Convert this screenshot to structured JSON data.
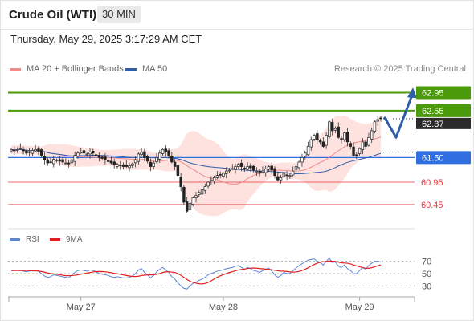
{
  "header": {
    "instrument": "Crude Oil (WTI)",
    "timeframe": "30 MIN"
  },
  "timestamp": "Thursday, May 29, 2025 3:17:29 AM CET",
  "credit": "Research © 2025 Trading Central",
  "colors": {
    "resistance": "#4a9a0c",
    "pivot": "#2f6fe0",
    "support": "#e8363c",
    "current": "#2b2b2b",
    "ma50": "#2f5ea8",
    "ma20": "#f08c8c",
    "band": "#fde2df",
    "arrow": "#2f5ea8",
    "rsi": "#5b86d6",
    "rsi_ma": "#e02020"
  },
  "chart_data": {
    "type": "candlestick",
    "legend": [
      "MA 20 + Bollinger Bands",
      "MA 50"
    ],
    "x_ticks": [
      "May 27",
      "May 28",
      "May 29"
    ],
    "current_price": "62.37",
    "levels": [
      {
        "role": "resistance",
        "value": "62.95"
      },
      {
        "role": "resistance",
        "value": "62.55"
      },
      {
        "role": "pivot",
        "value": "61.50"
      },
      {
        "role": "support",
        "value": "60.95"
      },
      {
        "role": "support",
        "value": "60.45"
      }
    ],
    "ylim": [
      60.0,
      63.3
    ],
    "close": [
      61.68,
      61.66,
      61.68,
      61.7,
      61.65,
      61.6,
      61.63,
      61.66,
      61.68,
      61.64,
      61.55,
      61.45,
      61.38,
      61.4,
      61.46,
      61.44,
      61.42,
      61.4,
      61.38,
      61.36,
      61.45,
      61.55,
      61.6,
      61.62,
      61.6,
      61.58,
      61.62,
      61.6,
      61.56,
      61.5,
      61.48,
      61.45,
      61.42,
      61.38,
      61.34,
      61.35,
      61.33,
      61.3,
      61.3,
      61.32,
      61.36,
      61.45,
      61.58,
      61.62,
      61.5,
      61.42,
      61.3,
      61.38,
      61.5,
      61.6,
      61.68,
      61.62,
      61.55,
      61.4,
      61.3,
      61.1,
      60.85,
      60.5,
      60.3,
      60.48,
      60.6,
      60.65,
      60.72,
      60.78,
      60.85,
      60.95,
      61.0,
      61.05,
      61.1,
      61.12,
      61.15,
      61.2,
      61.22,
      61.25,
      61.3,
      61.35,
      61.3,
      61.25,
      61.3,
      61.27,
      61.22,
      61.2,
      61.15,
      61.2,
      61.25,
      61.3,
      61.22,
      61.1,
      61.0,
      61.05,
      61.15,
      61.1,
      61.1,
      61.2,
      61.3,
      61.4,
      61.5,
      61.6,
      61.75,
      61.9,
      62.0,
      61.9,
      61.85,
      61.75,
      62.0,
      62.3,
      62.1,
      62.15,
      61.95,
      61.9,
      62.05,
      61.85,
      61.75,
      61.55,
      61.55,
      61.7,
      61.85,
      61.75,
      61.95,
      62.1,
      62.3,
      62.35,
      62.37
    ],
    "series": [
      {
        "name": "RSI",
        "values": [
          55,
          56,
          55,
          56,
          54,
          53,
          54,
          55,
          56,
          54,
          50,
          46,
          44,
          45,
          48,
          47,
          46,
          45,
          44,
          43,
          48,
          52,
          55,
          56,
          55,
          54,
          56,
          55,
          53,
          50,
          49,
          48,
          47,
          45,
          44,
          45,
          44,
          43,
          43,
          44,
          46,
          50,
          56,
          58,
          52,
          48,
          43,
          47,
          53,
          57,
          60,
          56,
          52,
          45,
          41,
          35,
          30,
          26,
          25,
          30,
          34,
          36,
          39,
          41,
          44,
          48,
          50,
          52,
          54,
          55,
          56,
          58,
          59,
          60,
          62,
          63,
          60,
          57,
          60,
          58,
          55,
          54,
          52,
          55,
          57,
          59,
          54,
          48,
          44,
          47,
          52,
          50,
          50,
          55,
          59,
          63,
          66,
          69,
          72,
          73,
          74,
          70,
          68,
          64,
          70,
          75,
          68,
          69,
          62,
          60,
          64,
          58,
          55,
          50,
          50,
          55,
          60,
          57,
          63,
          67,
          70,
          70,
          69
        ]
      },
      {
        "name": "9MA",
        "values": [
          55,
          55,
          55,
          55,
          55,
          55,
          55,
          54.6,
          54.5,
          54.1,
          53.4,
          52.3,
          51,
          50.2,
          49.6,
          48.9,
          48.1,
          47.3,
          46.6,
          46.6,
          46.8,
          47.3,
          48,
          48.9,
          49.9,
          50.8,
          51.7,
          52.7,
          53.3,
          53.4,
          53.3,
          53,
          52.4,
          51.5,
          50.4,
          49.7,
          48.8,
          47.8,
          46.9,
          46.1,
          45.4,
          45.3,
          45.8,
          46.8,
          47.4,
          47.8,
          47.9,
          48.1,
          48.8,
          50.1,
          51.8,
          52.9,
          53,
          52.4,
          51.8,
          50,
          47.2,
          43.8,
          40.4,
          37.6,
          35.8,
          34.4,
          33.5,
          33.1,
          33.9,
          35.7,
          38.3,
          41.2,
          44.1,
          46.4,
          48.3,
          50,
          51.8,
          53.2,
          54.6,
          56,
          56.8,
          57.4,
          58.4,
          58.9,
          59.1,
          58.8,
          58.3,
          57.8,
          57.3,
          56.9,
          56.3,
          55.3,
          54.7,
          54.1,
          53.9,
          53.4,
          52.8,
          52.4,
          52.7,
          53.5,
          55.1,
          57.1,
          59.5,
          62.3,
          64.7,
          66.9,
          68.3,
          69.3,
          69.8,
          70.4,
          70.3,
          69.8,
          68.6,
          67.6,
          67.2,
          66.9,
          65.7,
          64.1,
          62.5,
          61.2,
          59.9,
          58.6,
          58.7,
          59.6,
          61,
          62.8,
          64.3
        ]
      }
    ],
    "rsi_levels": [
      "70",
      "50",
      "30"
    ],
    "forecast": "up"
  }
}
